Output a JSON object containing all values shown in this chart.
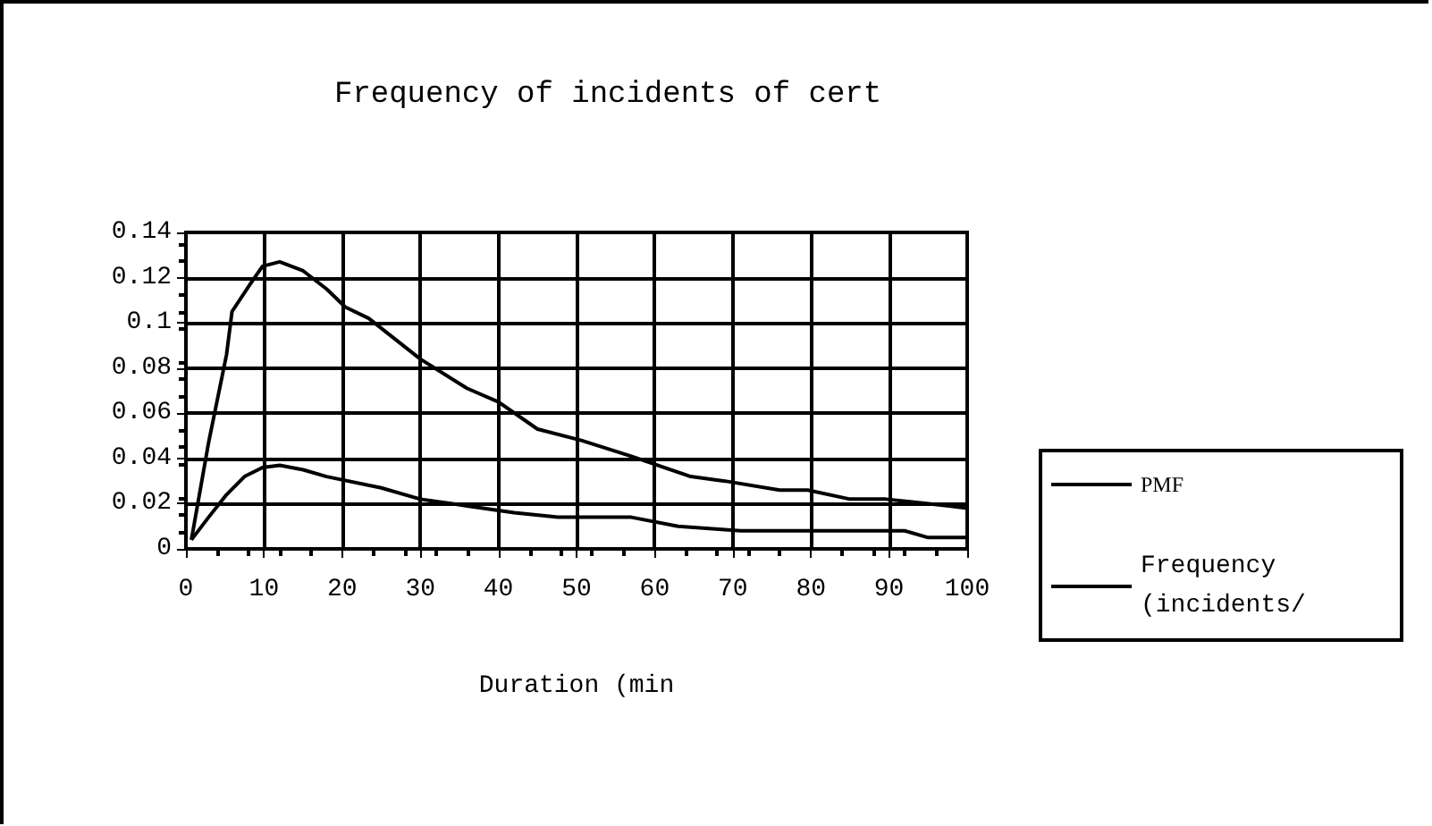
{
  "chart_data": {
    "type": "line",
    "title": "Frequency of incidents of cert",
    "xlabel": "Duration (min",
    "xlim": [
      0,
      100
    ],
    "xticks": [
      0,
      10,
      20,
      30,
      40,
      50,
      60,
      70,
      80,
      90,
      100
    ],
    "ylim": [
      0,
      0.14
    ],
    "yticks": [
      0,
      0.02,
      0.04,
      0.06,
      0.08,
      0.1,
      0.12,
      0.14
    ],
    "grid": true,
    "legend": "right",
    "marker": "none",
    "line_style": "solid",
    "series": [
      {
        "name": "PMF",
        "color": "#000000",
        "x": [
          0.7,
          2.9,
          5.2,
          7.5,
          9.8,
          12,
          15,
          18,
          25,
          30,
          36,
          42,
          47.6,
          57,
          63,
          71,
          92,
          95,
          100
        ],
        "values": [
          0.004,
          0.014,
          0.024,
          0.032,
          0.036,
          0.037,
          0.035,
          0.032,
          0.027,
          0.022,
          0.019,
          0.016,
          0.014,
          0.014,
          0.01,
          0.008,
          0.008,
          0.005,
          0.005
        ]
      },
      {
        "name": "Frequency (incidents/",
        "color": "#000000",
        "x": [
          0.7,
          2.9,
          5.2,
          5.9,
          8.2,
          9.8,
          12,
          15,
          18,
          20.4,
          23.4,
          30,
          36,
          40,
          45,
          50.6,
          57,
          64.6,
          69,
          76,
          79.6,
          85,
          89.6,
          97.7,
          100
        ],
        "values": [
          0.004,
          0.047,
          0.086,
          0.105,
          0.117,
          0.125,
          0.127,
          0.123,
          0.115,
          0.107,
          0.102,
          0.084,
          0.071,
          0.065,
          0.053,
          0.048,
          0.041,
          0.032,
          0.03,
          0.026,
          0.026,
          0.022,
          0.022,
          0.019,
          0.018
        ]
      }
    ]
  }
}
